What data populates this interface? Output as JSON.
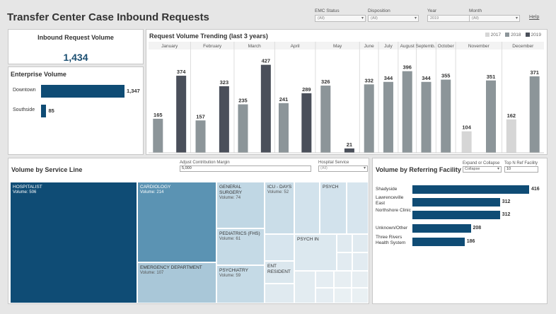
{
  "header": {
    "title": "Transfer Center Case Inbound Requests",
    "help": "Help",
    "filters": [
      {
        "label": "EMC Status",
        "value": "(All)"
      },
      {
        "label": "Disposition",
        "value": "(All)"
      },
      {
        "label": "Year",
        "value": "2019"
      },
      {
        "label": "Month",
        "value": "(All)"
      }
    ]
  },
  "inbound": {
    "title": "Inbound Request Volume",
    "value": "1,434"
  },
  "enterprise": {
    "title": "Enterprise Volume",
    "items": [
      {
        "label": "Downtown",
        "value": 1347,
        "display": "1,347"
      },
      {
        "label": "Southside",
        "value": 85,
        "display": "85"
      }
    ]
  },
  "trend": {
    "title": "Request Volume Trending (last 3 years)",
    "legend": [
      "2017",
      "2018",
      "2019"
    ],
    "colors": {
      "2017": "#d6d6d6",
      "2018": "#8c9599",
      "2019": "#4a4f5a"
    }
  },
  "chart_data": {
    "type": "bar",
    "title": "Request Volume Trending (last 3 years)",
    "categories": [
      "January",
      "February",
      "March",
      "April",
      "May",
      "June",
      "July",
      "August",
      "Septemb..",
      "October",
      "November",
      "December"
    ],
    "groups": [
      {
        "month": "January",
        "bars": [
          {
            "year": "2018",
            "value": 165
          },
          {
            "year": "2019",
            "value": 374
          }
        ]
      },
      {
        "month": "February",
        "bars": [
          {
            "year": "2018",
            "value": 157
          },
          {
            "year": "2019",
            "value": 323
          }
        ]
      },
      {
        "month": "March",
        "bars": [
          {
            "year": "2018",
            "value": 235
          },
          {
            "year": "2019",
            "value": 427
          }
        ]
      },
      {
        "month": "April",
        "bars": [
          {
            "year": "2018",
            "value": 241
          },
          {
            "year": "2019",
            "value": 289
          }
        ]
      },
      {
        "month": "May",
        "bars": [
          {
            "year": "2018",
            "value": 326
          },
          {
            "year": "2019",
            "value": 21
          }
        ]
      },
      {
        "month": "June",
        "bars": [
          {
            "year": "2018",
            "value": 332
          }
        ]
      },
      {
        "month": "July",
        "bars": [
          {
            "year": "2018",
            "value": 344
          }
        ]
      },
      {
        "month": "August",
        "bars": [
          {
            "year": "2018",
            "value": 396
          }
        ]
      },
      {
        "month": "Septemb..",
        "bars": [
          {
            "year": "2018",
            "value": 344
          }
        ]
      },
      {
        "month": "October",
        "bars": [
          {
            "year": "2018",
            "value": 355
          }
        ]
      },
      {
        "month": "November",
        "bars": [
          {
            "year": "2017",
            "value": 104
          },
          {
            "year": "2018",
            "value": 351
          }
        ]
      },
      {
        "month": "December",
        "bars": [
          {
            "year": "2017",
            "value": 162
          },
          {
            "year": "2018",
            "value": 371
          }
        ]
      }
    ],
    "ylim": [
      0,
      460
    ],
    "legend": [
      "2017",
      "2018",
      "2019"
    ]
  },
  "service": {
    "title": "Volume by Service Line",
    "acm_label": "Adjust Contribution Margin",
    "acm_value": "5,000",
    "hs_label": "Hospital Service",
    "hs_value": "(All)",
    "volume_prefix": "Volume: ",
    "cells": [
      {
        "name": "HOSPITALIST",
        "volume": "506",
        "shade": "dark"
      },
      {
        "name": "CARDIOLOGY",
        "volume": "214",
        "shade": "mid"
      },
      {
        "name": "EMERGENCY DEPARTMENT",
        "volume": "107",
        "shade": "light"
      },
      {
        "name": "GENERAL SURGERY",
        "volume": "74",
        "shade": "light"
      },
      {
        "name": "PEDIATRICS (FHS)",
        "volume": "61",
        "shade": "light"
      },
      {
        "name": "PSYCHIATRY",
        "volume": "59",
        "shade": "light"
      },
      {
        "name": "ICU - DAYS",
        "volume": "52",
        "shade": "light"
      },
      {
        "name": "PSYCH",
        "volume": "",
        "shade": "light"
      },
      {
        "name": "PSYCH IN",
        "volume": "",
        "shade": "light"
      },
      {
        "name": "ENT RESIDENT",
        "volume": "",
        "shade": "light"
      }
    ]
  },
  "referring": {
    "title": "Volume by Referring Facility",
    "expand_label": "Expand or Collapse",
    "expand_value": "Collapse",
    "topn_label": "Top N Ref Facility",
    "topn_value": "10",
    "items": [
      {
        "label": "Shadyside",
        "value": 416
      },
      {
        "label": "Lawrenceville East",
        "value": 312
      },
      {
        "label": "Northshore Clinic",
        "value": 312
      },
      {
        "label": "Unknown/Other",
        "value": 208
      },
      {
        "label": "Three Rivers Health System",
        "value": 186
      }
    ]
  }
}
